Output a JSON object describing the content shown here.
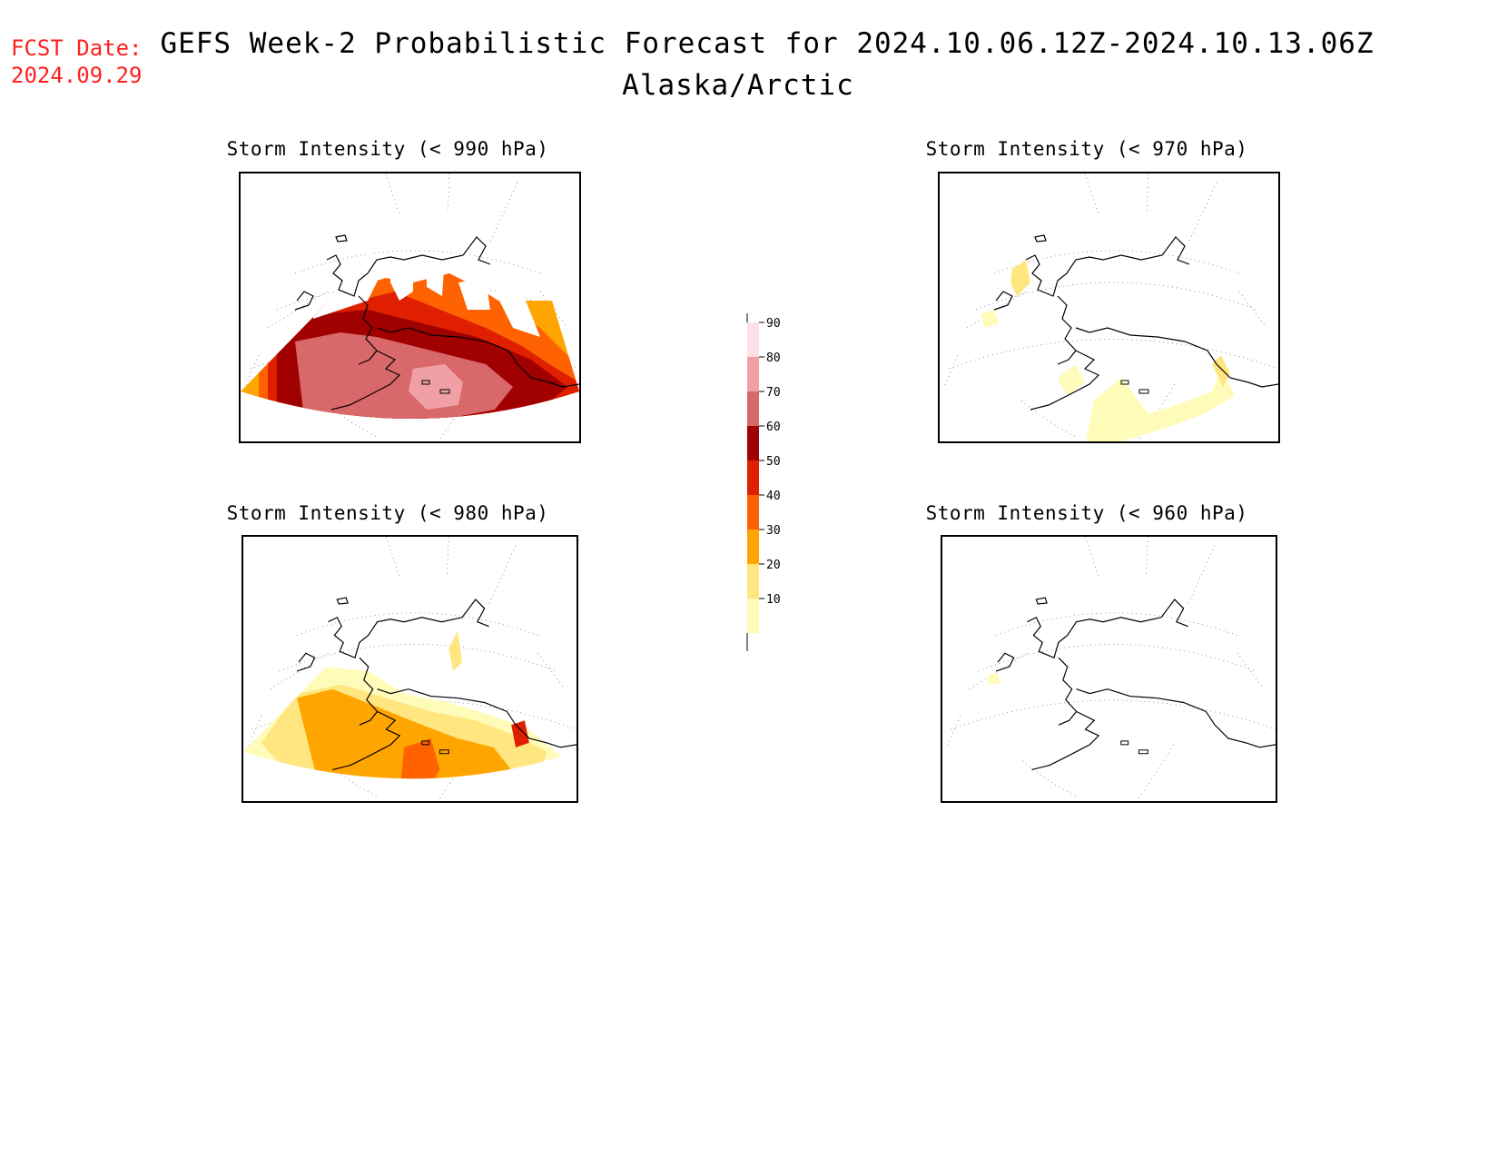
{
  "header": {
    "fcst_label": "FCST Date:",
    "fcst_date": "2024.09.29",
    "title": "GEFS Week-2 Probabilistic Forecast for 2024.10.06.12Z-2024.10.13.06Z",
    "subtitle": "Alaska/Arctic"
  },
  "panels": [
    {
      "id": "p990",
      "title": "Storm Intensity (< 990 hPa)",
      "threshold_hpa": 990,
      "max_probability_level": 90
    },
    {
      "id": "p970",
      "title": "Storm Intensity (< 970 hPa)",
      "threshold_hpa": 970,
      "max_probability_level": 20
    },
    {
      "id": "p980",
      "title": "Storm Intensity (< 980 hPa)",
      "threshold_hpa": 980,
      "max_probability_level": 50
    },
    {
      "id": "p960",
      "title": "Storm Intensity (< 960 hPa)",
      "threshold_hpa": 960,
      "max_probability_level": 10
    }
  ],
  "legend": {
    "levels": [
      "10",
      "20",
      "30",
      "40",
      "50",
      "60",
      "70",
      "80",
      "90"
    ],
    "colors": [
      "#fffbb8",
      "#ffe680",
      "#ffa500",
      "#ff6200",
      "#e01e00",
      "#a00000",
      "#d9686a",
      "#f0a0a4",
      "#fde0e4"
    ]
  }
}
